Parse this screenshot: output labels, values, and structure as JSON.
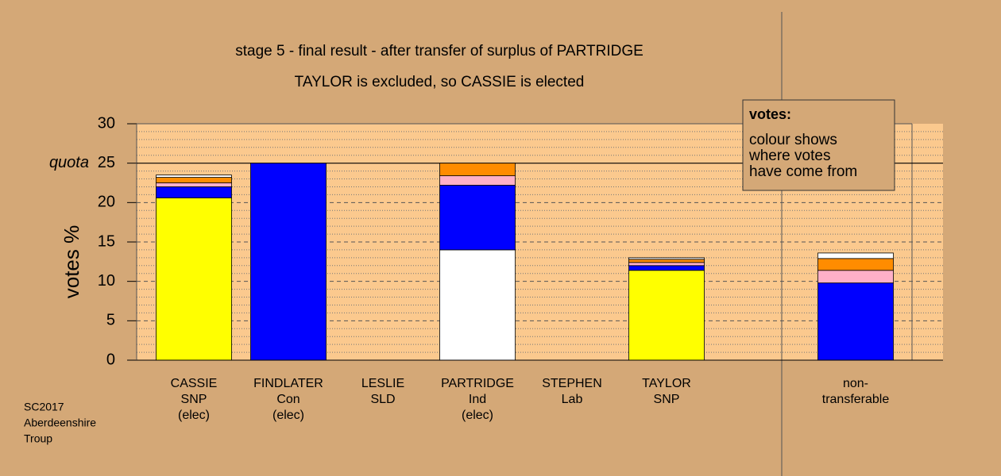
{
  "chart_data": {
    "type": "stacked-bar",
    "title": "stage 5 - final result - after transfer of surplus of PARTRIDGE",
    "subtitle": "TAYLOR is excluded, so CASSIE is elected",
    "y_label": "votes %",
    "categories": [
      [
        "CASSIE",
        "SNP",
        "(elec)"
      ],
      [
        "FINDLATER",
        "Con",
        "(elec)"
      ],
      [
        "LESLIE",
        "SLD"
      ],
      [
        "PARTRIDGE",
        "Ind",
        "(elec)"
      ],
      [
        "STEPHEN",
        "Lab"
      ],
      [
        "TAYLOR",
        "SNP"
      ],
      [
        "non-",
        "transferable"
      ]
    ],
    "series": [
      {
        "color": "#ffff00",
        "values": [
          20.6,
          null,
          null,
          null,
          null,
          11.4,
          null
        ]
      },
      {
        "color": "#ffffff",
        "values": [
          null,
          null,
          null,
          14.0,
          null,
          null,
          null
        ]
      },
      {
        "color": "#0000ff",
        "values": [
          1.4,
          25,
          null,
          8.2,
          null,
          0.6,
          9.8
        ]
      },
      {
        "color": "#ffb0c8",
        "values": [
          0.5,
          null,
          null,
          1.2,
          null,
          0.4,
          1.6
        ]
      },
      {
        "color": "#ff8c00",
        "values": [
          0.7,
          null,
          null,
          1.6,
          null,
          0.4,
          1.5
        ]
      },
      {
        "color": "#ffffff",
        "values": [
          0.3,
          null,
          null,
          null,
          null,
          0.2,
          0.7
        ]
      }
    ],
    "ylim": [
      0,
      30
    ],
    "yticks": [
      0,
      5,
      10,
      15,
      20,
      25,
      30
    ],
    "grid": true,
    "quota": 25,
    "quota_label": "quota",
    "note": {
      "title": "votes:",
      "lines": [
        "colour shows",
        "where votes",
        "have come from"
      ]
    },
    "footer": [
      "SC2017",
      "Aberdeenshire",
      "Troup"
    ]
  }
}
